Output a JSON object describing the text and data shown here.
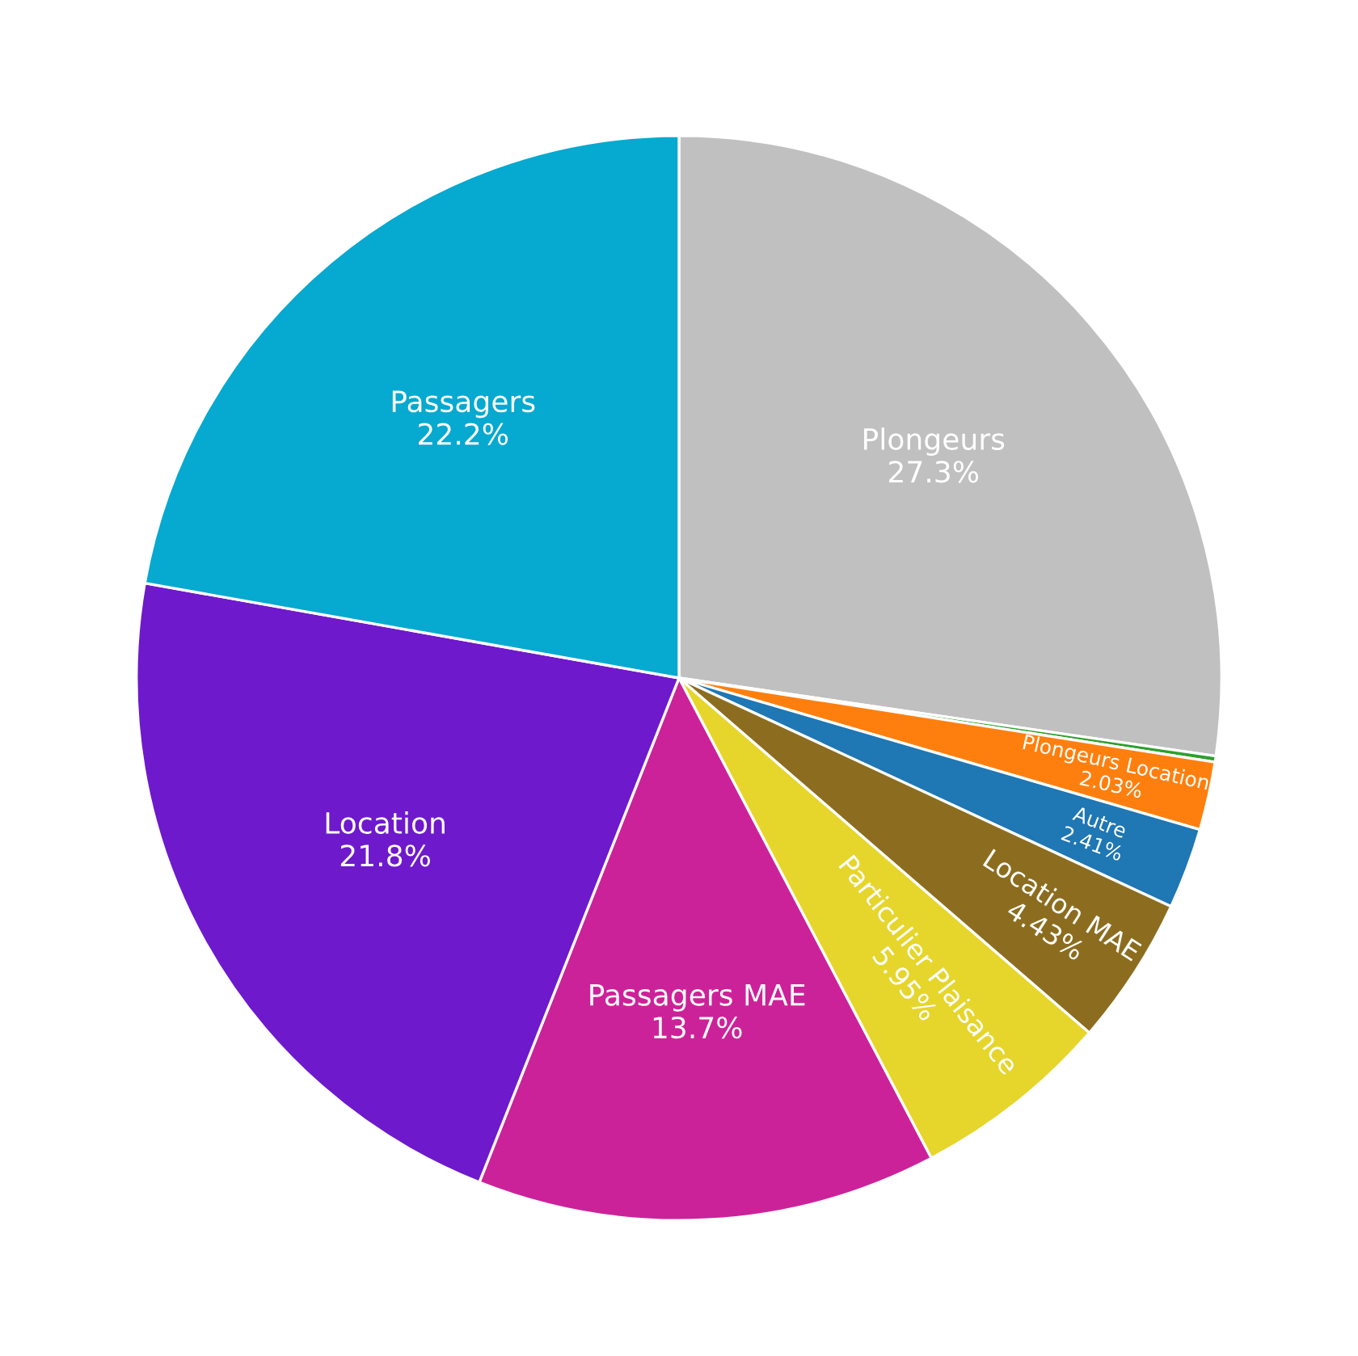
{
  "chart_data": {
    "type": "pie",
    "categories": [
      "Plongeurs",
      null,
      "Plongeurs Location",
      "Autre",
      "Location MAE",
      "Particulier Plaisance",
      "Passagers MAE",
      "Location",
      "Passagers"
    ],
    "values": [
      27.3,
      0.18,
      2.03,
      2.41,
      4.43,
      5.95,
      13.7,
      21.8,
      22.2
    ],
    "value_labels": [
      "27.3%",
      null,
      "2.03%",
      "2.41%",
      "4.43%",
      "5.95%",
      "13.7%",
      "21.8%",
      "22.2%"
    ],
    "colors": [
      "#c0c0c0",
      "#2ca02c",
      "#ff7f0e",
      "#1f77b4",
      "#8c6d1f",
      "#e6d52b",
      "#cc2299",
      "#6e19cc",
      "#06a9cf"
    ],
    "legend": false
  }
}
